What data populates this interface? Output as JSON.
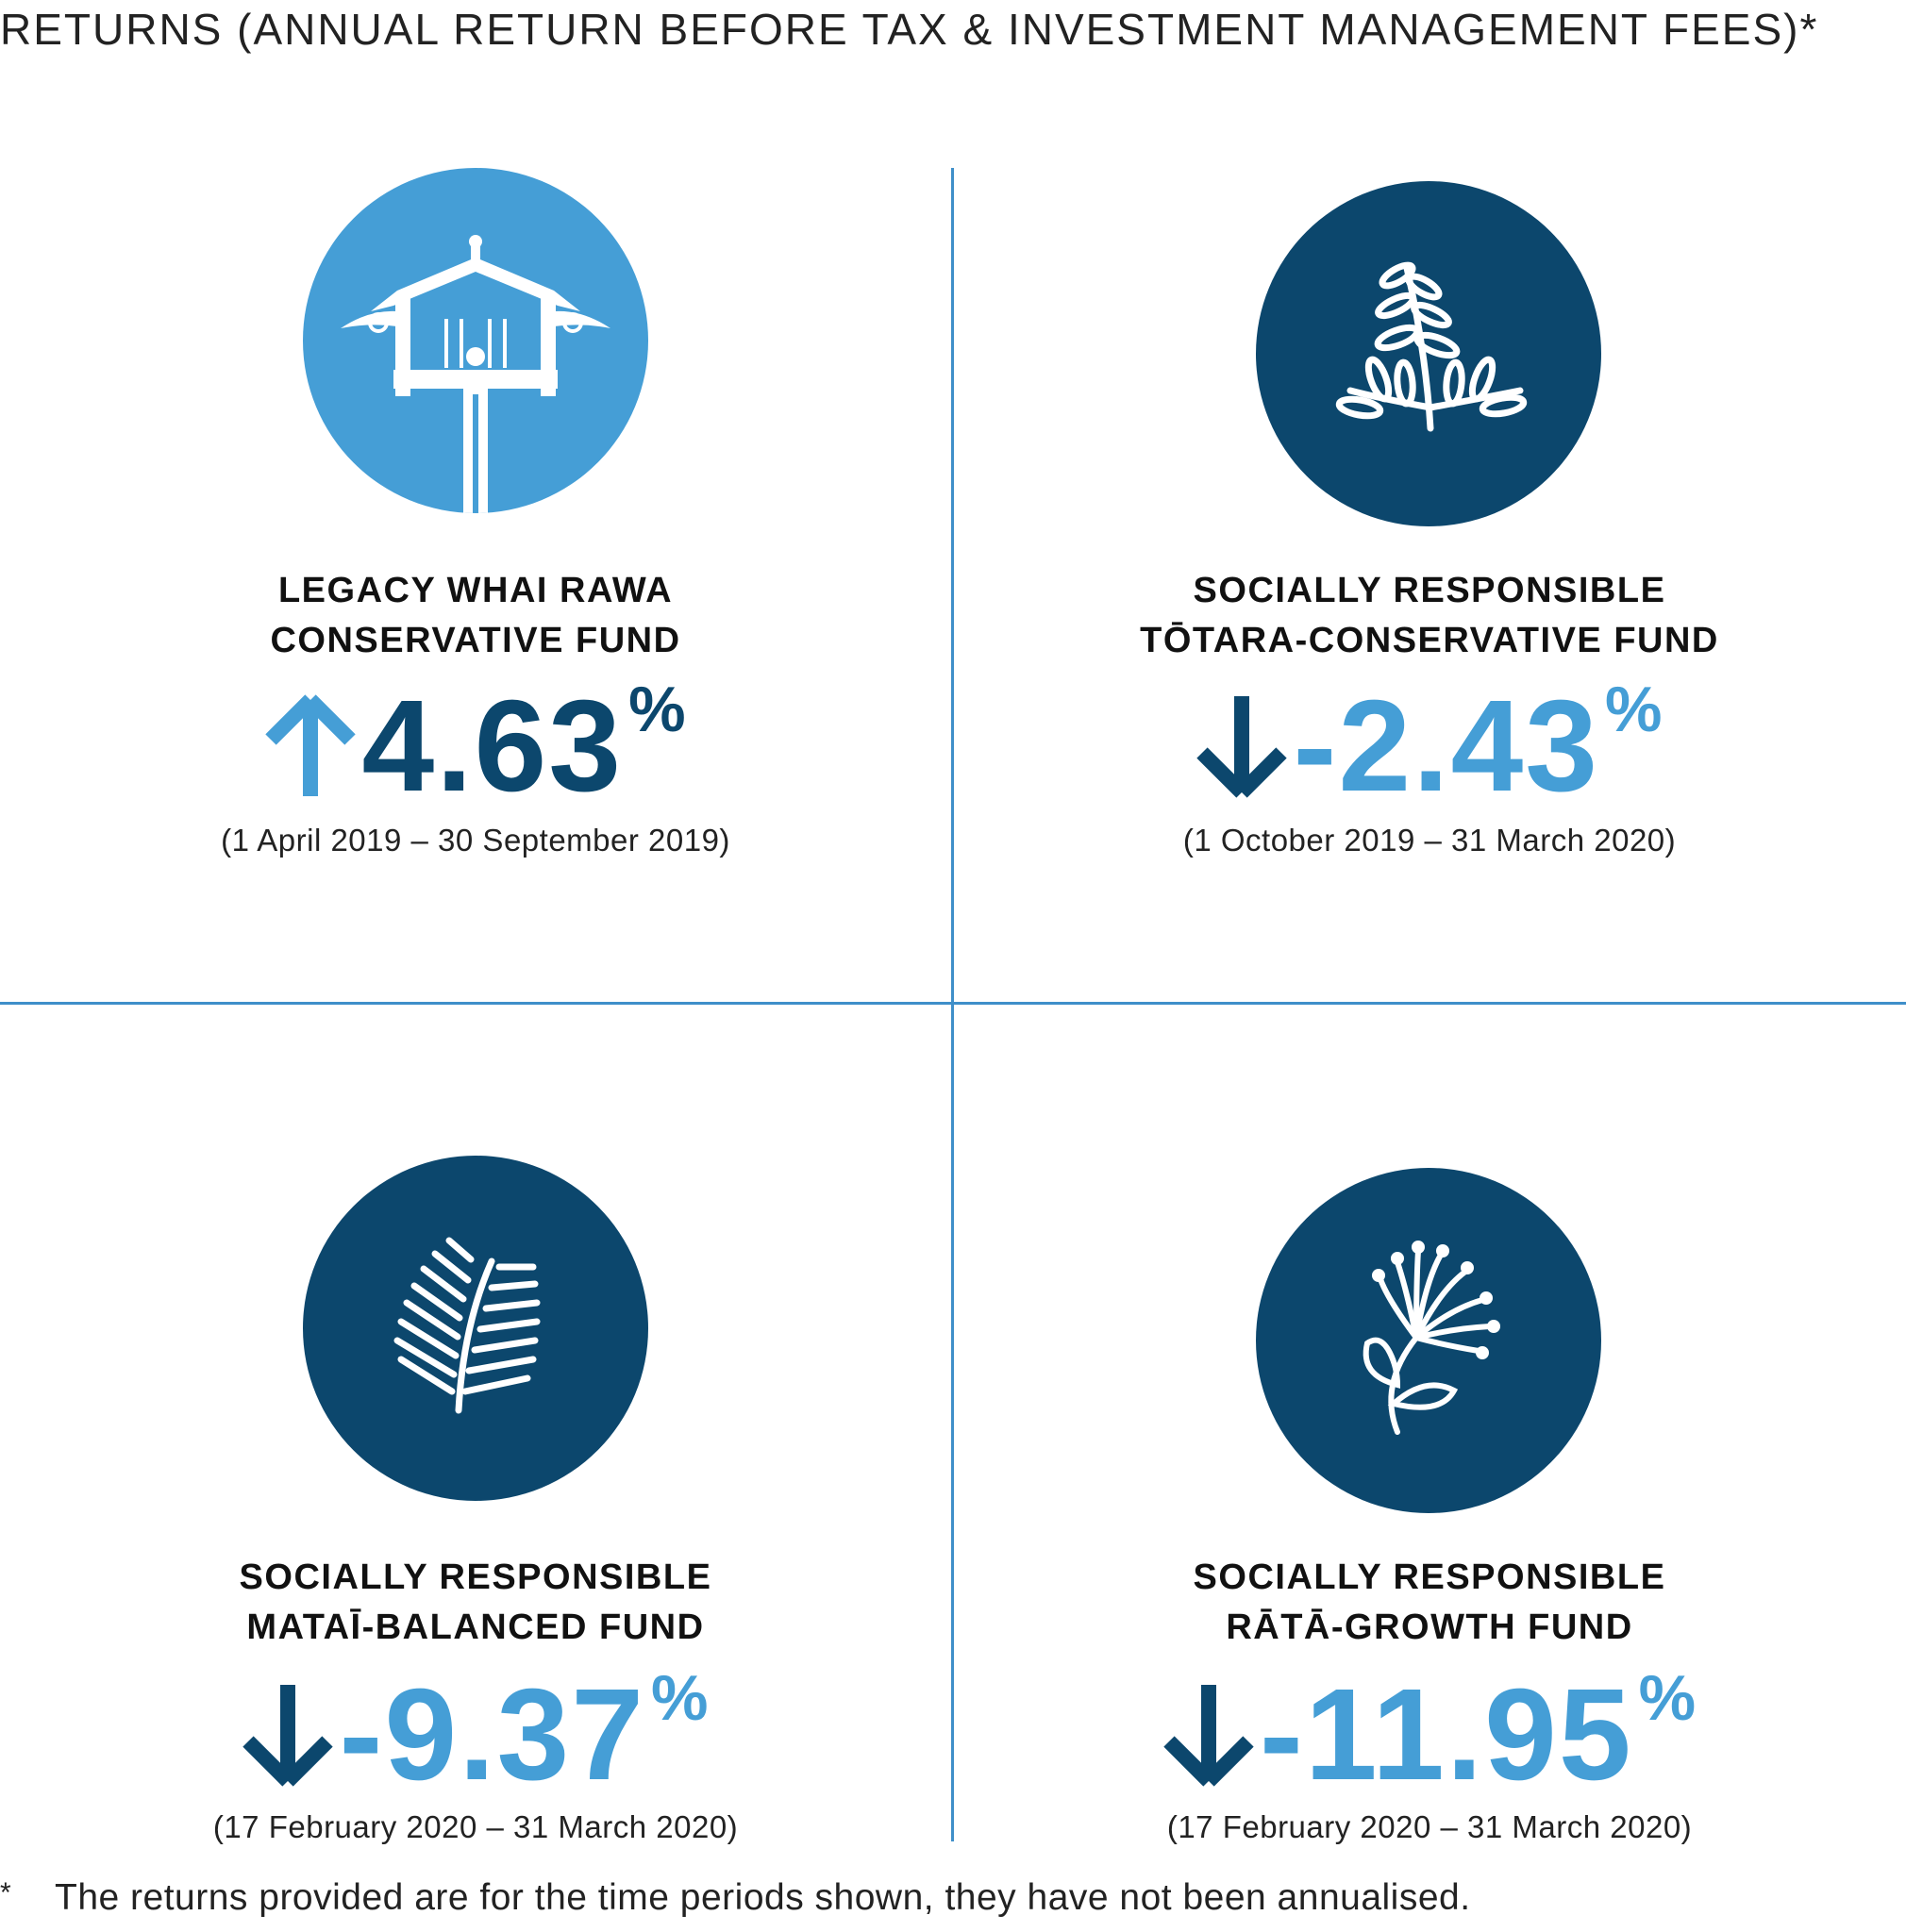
{
  "heading": "RETURNS (ANNUAL RETURN BEFORE TAX & INVESTMENT MANAGEMENT FEES)*",
  "colors": {
    "light_blue": "#459ed6",
    "dark_blue": "#0c476d",
    "divider": "#3f8fc9"
  },
  "funds": [
    {
      "icon": "pou-carving-icon",
      "name_line1": "LEGACY WHAI RAWA",
      "name_line2": "CONSERVATIVE FUND",
      "direction": "up",
      "value": "4.63",
      "unit": "%",
      "period": "(1 April 2019 – 30 September 2019)"
    },
    {
      "icon": "totara-leaf-icon",
      "name_line1": "SOCIALLY RESPONSIBLE",
      "name_line2": "TŌTARA-CONSERVATIVE FUND",
      "direction": "down",
      "value": "-2.43",
      "unit": "%",
      "period": "(1 October 2019 – 31 March 2020)"
    },
    {
      "icon": "matai-frond-icon",
      "name_line1": "SOCIALLY RESPONSIBLE",
      "name_line2": "MATAĪ-BALANCED FUND",
      "direction": "down",
      "value": "-9.37",
      "unit": "%",
      "period": "(17 February 2020 – 31 March 2020)"
    },
    {
      "icon": "rata-flower-icon",
      "name_line1": "SOCIALLY RESPONSIBLE",
      "name_line2": "RĀTĀ-GROWTH FUND",
      "direction": "down",
      "value": "-11.95",
      "unit": "%",
      "period": "(17 February 2020 – 31 March 2020)"
    }
  ],
  "footnote": {
    "marker": "*",
    "text": "The returns provided are for the time periods shown, they have not been annualised."
  }
}
